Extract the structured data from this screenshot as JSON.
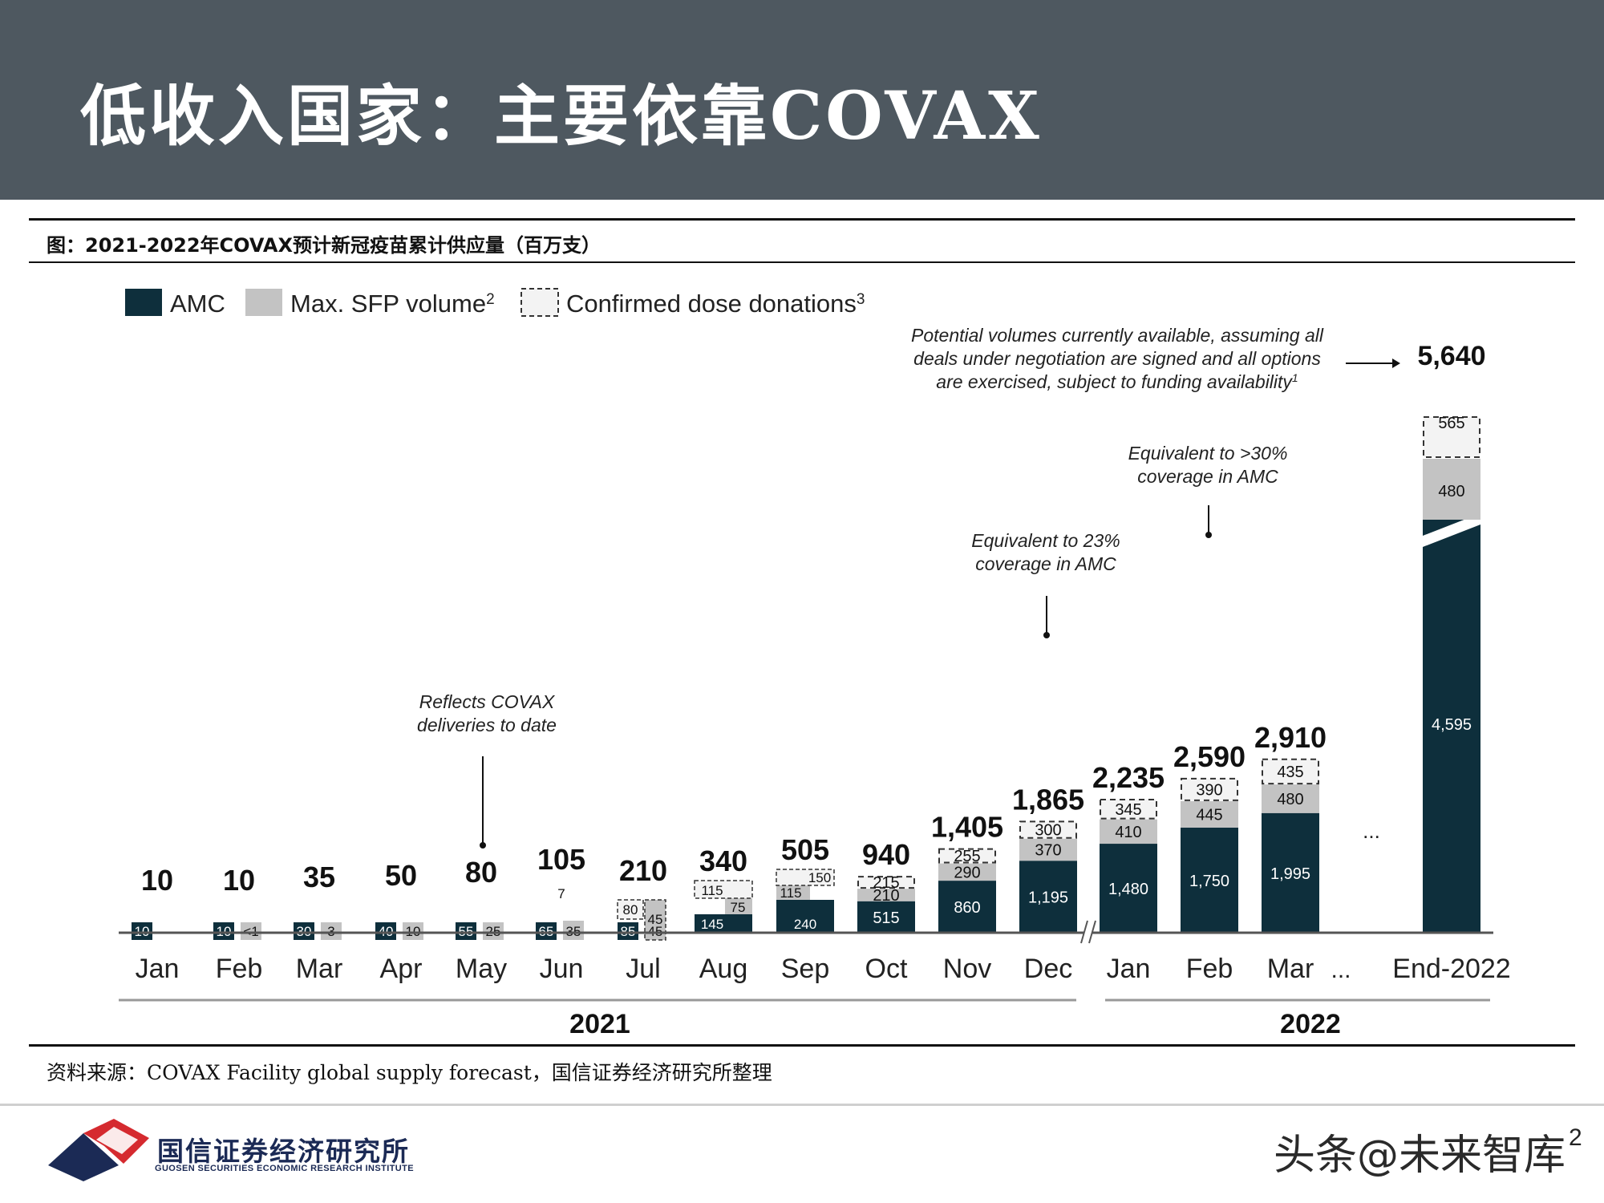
{
  "header": {
    "title": "低收入国家：主要依靠COVAX"
  },
  "figure": {
    "caption": "图：2021-2022年COVAX预计新冠疫苗累计供应量（百万支）"
  },
  "source": {
    "text": "资料来源：COVAX Facility global supply forecast，国信证券经济研究所整理"
  },
  "footer": {
    "org_cn": "国信证券经济研究所",
    "org_en": "GUOSEN SECURITIES ECONOMIC RESEARCH INSTITUTE",
    "watermark": "头条@未来智库",
    "page_number": "2"
  },
  "colors": {
    "amc": "#0e2f3c",
    "sfp": "#c3c3c3",
    "donation_fill": "#f3f3f3",
    "header_bg": "#4e5860",
    "logo_red": "#d52a2f",
    "logo_navy": "#1b2a55"
  },
  "chart_data": {
    "type": "bar",
    "stacked": true,
    "legend": [
      {
        "name": "AMC",
        "sup": ""
      },
      {
        "name": "Max. SFP volume",
        "sup": "2"
      },
      {
        "name": "Confirmed dose donations",
        "sup": "3"
      }
    ],
    "categories": [
      "Jan",
      "Feb",
      "Mar",
      "Apr",
      "May",
      "Jun",
      "Jul",
      "Aug",
      "Sep",
      "Oct",
      "Nov",
      "Dec",
      "Jan",
      "Feb",
      "Mar",
      "End-2022"
    ],
    "groups": [
      {
        "label": "2021"
      },
      {
        "label": "2022"
      }
    ],
    "series": [
      {
        "name": "AMC",
        "values": [
          10,
          10,
          30,
          40,
          55,
          65,
          85,
          145,
          240,
          515,
          860,
          1195,
          1480,
          1750,
          1995,
          4595
        ],
        "labels": [
          "10",
          "10",
          "30",
          "40",
          "55",
          "65",
          "85",
          "145",
          "240",
          "515",
          "860",
          "1,195",
          "1,480",
          "1,750",
          "1,995",
          "4,595"
        ]
      },
      {
        "name": "Max. SFP volume",
        "values": [
          0,
          0.5,
          3,
          10,
          25,
          35,
          45,
          75,
          115,
          210,
          290,
          370,
          410,
          445,
          480,
          480
        ],
        "labels": [
          "",
          "<1",
          "3",
          "10",
          "25",
          "35",
          "45",
          "75",
          "115",
          "210",
          "290",
          "370",
          "410",
          "445",
          "480",
          "480"
        ]
      },
      {
        "name": "Confirmed dose donations",
        "values": [
          0,
          0,
          0,
          0,
          0,
          7,
          80,
          115,
          150,
          215,
          255,
          300,
          345,
          390,
          435,
          565
        ],
        "labels": [
          "",
          "",
          "",
          "",
          "",
          "7",
          "80",
          "115",
          "150",
          "215",
          "255",
          "300",
          "345",
          "390",
          "435",
          "565"
        ]
      }
    ],
    "totals": [
      "10",
      "10",
      "35",
      "50",
      "80",
      "105",
      "210",
      "340",
      "505",
      "940",
      "1,405",
      "1,865",
      "2,235",
      "2,590",
      "2,910",
      "5,640"
    ],
    "ellipsis": [
      "...",
      "..."
    ],
    "annotations": [
      {
        "id": "covax-deliveries",
        "lines": [
          "Reflects COVAX",
          "deliveries to date"
        ]
      },
      {
        "id": "dec-coverage",
        "lines": [
          "Equivalent to 23%",
          "coverage in AMC"
        ]
      },
      {
        "id": "feb-coverage",
        "lines": [
          "Equivalent to >30%",
          "coverage in AMC"
        ]
      },
      {
        "id": "potential-volumes",
        "lines": [
          "Potential volumes currently available, assuming all",
          "deals under negotiation are signed and all options",
          "are exercised, subject to funding availability"
        ],
        "sup": "1"
      }
    ]
  }
}
